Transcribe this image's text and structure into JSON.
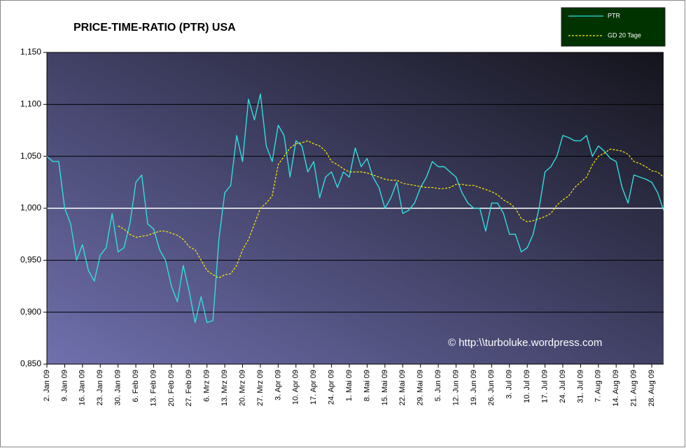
{
  "chart_data": {
    "type": "line",
    "title": "PRICE-TIME-RATIO (PTR) USA",
    "annotation": "© http:\\\\turboluke.wordpress.com",
    "legend": "top-right",
    "grid": true,
    "ylim": [
      0.85,
      1.15
    ],
    "yticks": [
      {
        "value": 0.85,
        "label": "0,850"
      },
      {
        "value": 0.9,
        "label": "0,900"
      },
      {
        "value": 0.95,
        "label": "0,950"
      },
      {
        "value": 1,
        "label": "1,000"
      },
      {
        "value": 1.05,
        "label": "1,050"
      },
      {
        "value": 1.1,
        "label": "1,100"
      },
      {
        "value": 1.15,
        "label": "1,150"
      }
    ],
    "reference_line": {
      "value": 1,
      "color": "#ffffff"
    },
    "categories": [
      "2. Jan 09",
      null,
      null,
      "9. Jan 09",
      null,
      null,
      "16. Jan 09",
      null,
      null,
      "23. Jan 09",
      null,
      null,
      "30. Jan 09",
      null,
      null,
      "6. Feb 09",
      null,
      null,
      "13. Feb 09",
      null,
      null,
      "20. Feb 09",
      null,
      null,
      "27. Feb 09",
      null,
      null,
      "6. Mrz 09",
      null,
      null,
      "13. Mrz 09",
      null,
      null,
      "20. Mrz 09",
      null,
      null,
      "27. Mrz 09",
      null,
      null,
      "3. Apr 09",
      null,
      null,
      "10. Apr 09",
      null,
      null,
      "17. Apr 09",
      null,
      null,
      "24. Apr 09",
      null,
      null,
      "1. Mai 09",
      null,
      null,
      "8. Mai 09",
      null,
      null,
      "15. Mai 09",
      null,
      null,
      "22. Mai 09",
      null,
      null,
      "29. Mai 09",
      null,
      null,
      "5. Jun 09",
      null,
      null,
      "12. Jun 09",
      null,
      null,
      "19. Jun 09",
      null,
      null,
      "26. Jun 09",
      null,
      null,
      "3. Jul 09",
      null,
      null,
      "10. Jul 09",
      null,
      null,
      "17. Jul 09",
      null,
      null,
      "24. Jul 09",
      null,
      null,
      "31. Jul 09",
      null,
      null,
      "7. Aug 09",
      null,
      null,
      "14. Aug 09",
      null,
      null,
      "21. Aug 09",
      null,
      null,
      "28. Aug 09",
      null,
      null
    ],
    "series": [
      {
        "name": "PTR",
        "color": "#33dddd",
        "dash": false,
        "values": [
          1.05,
          1.045,
          1.045,
          1.0,
          0.985,
          0.95,
          0.965,
          0.94,
          0.93,
          0.955,
          0.962,
          0.995,
          0.958,
          0.962,
          0.985,
          1.025,
          1.032,
          0.985,
          0.98,
          0.96,
          0.95,
          0.925,
          0.91,
          0.945,
          0.92,
          0.89,
          0.915,
          0.89,
          0.892,
          0.97,
          1.015,
          1.022,
          1.07,
          1.045,
          1.105,
          1.085,
          1.11,
          1.06,
          1.045,
          1.08,
          1.07,
          1.03,
          1.065,
          1.06,
          1.035,
          1.045,
          1.01,
          1.03,
          1.035,
          1.02,
          1.035,
          1.03,
          1.058,
          1.04,
          1.048,
          1.03,
          1.02,
          1.0,
          1.01,
          1.025,
          0.995,
          0.998,
          1.005,
          1.02,
          1.03,
          1.045,
          1.04,
          1.04,
          1.035,
          1.03,
          1.015,
          1.005,
          1.0,
          1.0,
          0.978,
          1.005,
          1.005,
          0.995,
          0.975,
          0.975,
          0.958,
          0.962,
          0.975,
          1.0,
          1.035,
          1.04,
          1.05,
          1.07,
          1.068,
          1.065,
          1.065,
          1.07,
          1.05,
          1.06,
          1.055,
          1.048,
          1.045,
          1.02,
          1.005,
          1.032,
          1.03,
          1.028,
          1.025,
          1.015,
          0.998
        ]
      },
      {
        "name": "GD 20 Tage",
        "color": "#ffee00",
        "dash": true,
        "values": [
          null,
          null,
          null,
          null,
          null,
          null,
          null,
          null,
          null,
          null,
          null,
          null,
          0.983,
          0.98,
          0.975,
          0.972,
          0.973,
          0.974,
          0.976,
          0.978,
          0.978,
          0.976,
          0.974,
          0.97,
          0.963,
          0.96,
          0.95,
          0.94,
          0.936,
          0.933,
          0.936,
          0.937,
          0.945,
          0.96,
          0.97,
          0.985,
          1.0,
          1.005,
          1.012,
          1.042,
          1.05,
          1.058,
          1.062,
          1.063,
          1.065,
          1.062,
          1.06,
          1.055,
          1.045,
          1.042,
          1.038,
          1.035,
          1.035,
          1.035,
          1.034,
          1.032,
          1.03,
          1.028,
          1.027,
          1.027,
          1.024,
          1.023,
          1.022,
          1.021,
          1.02,
          1.02,
          1.019,
          1.019,
          1.02,
          1.023,
          1.023,
          1.022,
          1.022,
          1.02,
          1.018,
          1.016,
          1.013,
          1.008,
          1.005,
          1.0,
          0.99,
          0.987,
          0.988,
          0.99,
          0.992,
          0.995,
          1.003,
          1.008,
          1.012,
          1.02,
          1.025,
          1.03,
          1.042,
          1.05,
          1.053,
          1.057,
          1.056,
          1.055,
          1.052,
          1.045,
          1.043,
          1.04,
          1.036,
          1.035,
          1.03
        ]
      }
    ]
  }
}
